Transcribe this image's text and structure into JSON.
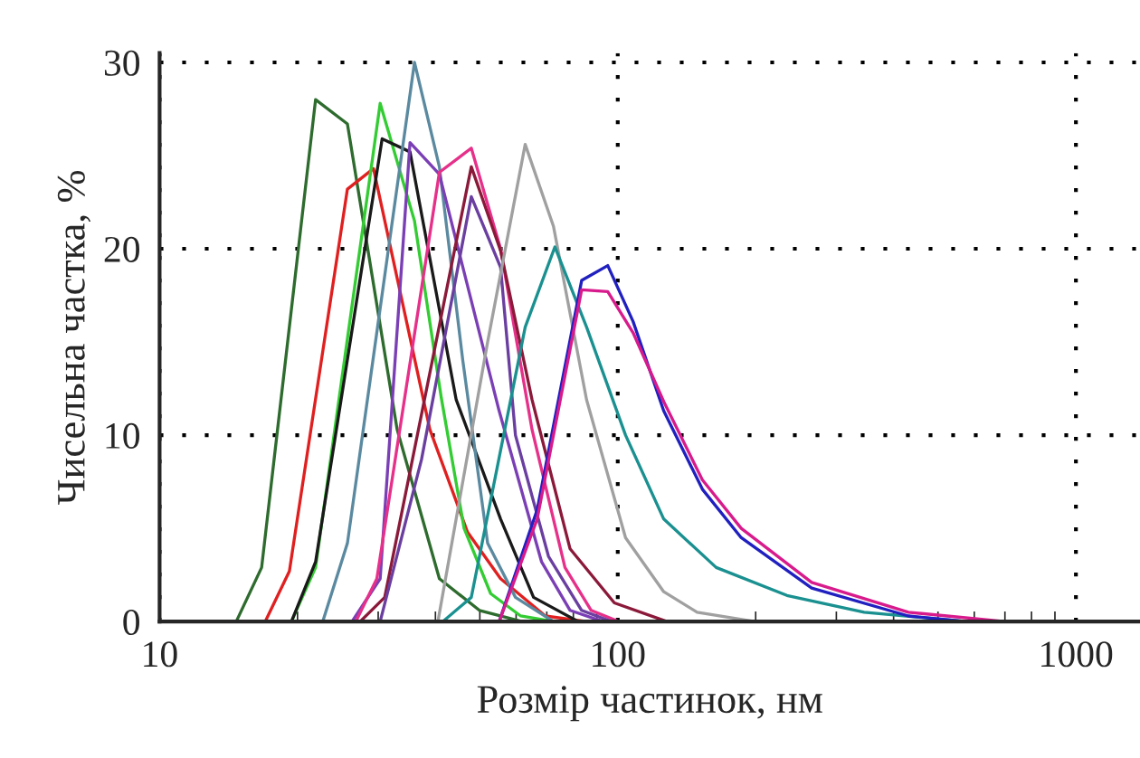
{
  "chart_data": {
    "type": "line",
    "xlabel": "Розмір частинок, нм",
    "ylabel": "Чисельна частка, %",
    "log": "x",
    "grid": true,
    "marker": "none",
    "line_style": "solid",
    "xlim": [
      10,
      1380
    ],
    "xticks": [
      10,
      100,
      1000
    ],
    "ylim": [
      0,
      30.5
    ],
    "yticks": [
      0,
      10,
      20,
      30
    ],
    "series": [
      {
        "color": "#2e6b2e",
        "x": [
          14.7,
          16.7,
          21.9,
          25.7,
          33,
          40.8,
          49.9,
          61.8
        ],
        "values": [
          0,
          2.9,
          28,
          26.7,
          10.3,
          2.3,
          0.6,
          0
        ]
      },
      {
        "color": "#e02020",
        "x": [
          17.0,
          19.2,
          25.7,
          29.3,
          38.9,
          47.0,
          55.5,
          69.5,
          85.5
        ],
        "values": [
          0,
          2.7,
          23.2,
          24.3,
          10.3,
          4.8,
          2.3,
          0.3,
          0
        ]
      },
      {
        "color": "#33cc33",
        "x": [
          19.4,
          21.9,
          30.3,
          36.0,
          41.2,
          46.2,
          52.8,
          61.4,
          72.4
        ],
        "values": [
          0,
          2.9,
          27.8,
          21.5,
          12,
          5,
          1.5,
          0.3,
          0
        ]
      },
      {
        "color": "#1a1a1a",
        "x": [
          19.4,
          21.9,
          30.6,
          35.2,
          44.4,
          55.5,
          65.5,
          82
        ],
        "values": [
          0,
          3.2,
          25.9,
          25.2,
          11.9,
          5.5,
          1.3,
          0
        ]
      },
      {
        "color": "#5b8aa0",
        "x": [
          22.7,
          25.7,
          36.0,
          40.8,
          45.9,
          52.0,
          59.8,
          72.4
        ],
        "values": [
          0,
          4.2,
          30,
          24.4,
          14,
          4.2,
          1.3,
          0
        ]
      },
      {
        "color": "#7b3fb5",
        "x": [
          26.3,
          30.3,
          35.2,
          40.8,
          55.1,
          68.2,
          78.7,
          92.8
        ],
        "values": [
          0,
          2.3,
          25.7,
          24,
          11.3,
          3.2,
          0.6,
          0
        ]
      },
      {
        "color": "#e6308a",
        "x": [
          26.8,
          29.8,
          40.8,
          47.9,
          55.5,
          65,
          76.7,
          87.5,
          100.4
        ],
        "values": [
          0,
          2.3,
          24.1,
          25.4,
          20,
          10.3,
          2.9,
          0.6,
          0
        ]
      },
      {
        "color": "#8b1a3a",
        "x": [
          27.4,
          31,
          47.9,
          55.5,
          65,
          78.7,
          98.3,
          128
        ],
        "values": [
          0,
          1.3,
          24.4,
          19.9,
          11.9,
          3.9,
          1,
          0
        ]
      },
      {
        "color": "#6a3fa0",
        "x": [
          30.3,
          37.3,
          47.9,
          55.5,
          59.8,
          70.6,
          83.4,
          96.8
        ],
        "values": [
          0,
          8.7,
          22.8,
          19,
          10,
          3.5,
          0.6,
          0
        ]
      },
      {
        "color": "#a0a0a0",
        "x": [
          40.5,
          52,
          62.8,
          72.4,
          85.5,
          104,
          126,
          149,
          199
        ],
        "values": [
          0,
          15,
          25.6,
          21.2,
          11.9,
          4.5,
          1.6,
          0.5,
          0
        ]
      },
      {
        "color": "#1a9090",
        "x": [
          41.5,
          47.9,
          62.8,
          72.9,
          85.5,
          104,
          126,
          164,
          234,
          345,
          577
        ],
        "values": [
          0,
          1.3,
          15.8,
          20.1,
          15.8,
          10,
          5.5,
          2.9,
          1.4,
          0.5,
          0
        ]
      },
      {
        "color": "#2020c0",
        "x": [
          55.1,
          66.7,
          83.4,
          95.1,
          108,
          126,
          153,
          186,
          265,
          431,
          577
        ],
        "values": [
          0,
          6,
          18.3,
          19.1,
          16.1,
          11.3,
          7.1,
          4.5,
          1.8,
          0.3,
          0
        ]
      },
      {
        "color": "#d81b8c",
        "x": [
          55.1,
          66.7,
          83.4,
          95.1,
          108,
          126,
          153,
          186,
          265,
          431,
          700
        ],
        "values": [
          0,
          5.5,
          17.8,
          17.7,
          15.5,
          11.8,
          7.6,
          5,
          2.1,
          0.5,
          0
        ]
      }
    ]
  }
}
